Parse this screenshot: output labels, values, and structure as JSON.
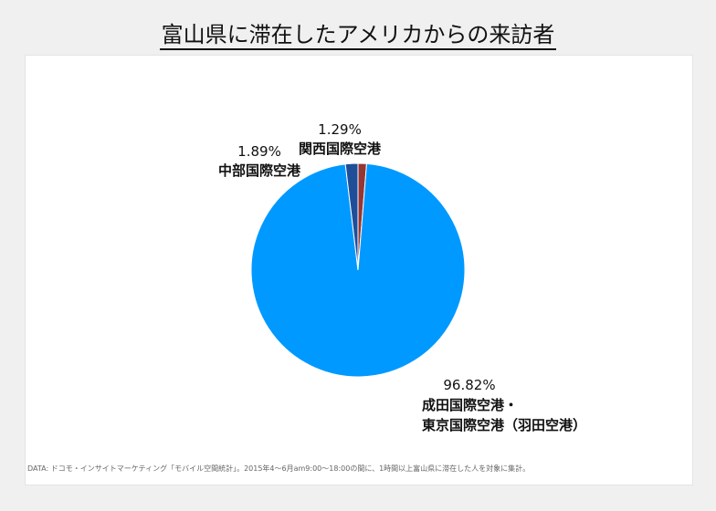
{
  "title": "富山県に滞在したアメリカからの来訪者",
  "source": "DATA: ドコモ・インサイトマーケティング「モバイル空間統計」。2015年4～6月am9:00～18:00の間に、1時間以上富山県に滞在した人を対象に集計。",
  "chart_data": {
    "type": "pie",
    "slices": [
      {
        "name": "関西国際空港",
        "value": 1.29,
        "label": "1.29%",
        "color": "#943634"
      },
      {
        "name": "成田国際空港・東京国際空港（羽田空港）",
        "name_lines": [
          "成田国際空港・",
          "東京国際空港（羽田空港）"
        ],
        "value": 96.82,
        "label": "96.82%",
        "color": "#0099ff"
      },
      {
        "name": "中部国際空港",
        "value": 1.89,
        "label": "1.89%",
        "color": "#1f4e99"
      }
    ]
  }
}
